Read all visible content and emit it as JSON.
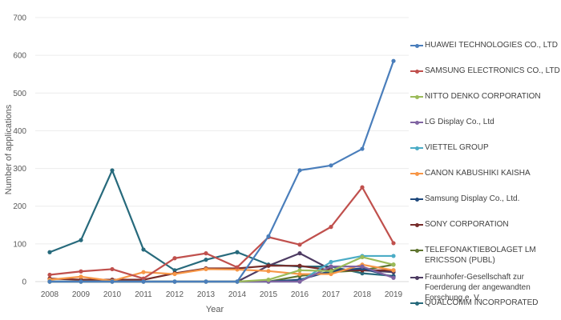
{
  "chart_data": {
    "type": "line",
    "title": "",
    "xlabel": "Year",
    "ylabel": "Number of applications",
    "ylim": [
      0,
      700
    ],
    "yticks": [
      0,
      100,
      200,
      300,
      400,
      500,
      600,
      700
    ],
    "grid": true,
    "legend_position": "right",
    "categories": [
      "2008",
      "2009",
      "2010",
      "2011",
      "2012",
      "2013",
      "2014",
      "2015",
      "2016",
      "2017",
      "2018",
      "2019"
    ],
    "series": [
      {
        "name": "HUAWEI TECHNOLOGIES CO., LTD",
        "color": "#4a7ebb",
        "values": [
          0,
          0,
          0,
          0,
          0,
          0,
          0,
          120,
          295,
          308,
          352,
          585
        ]
      },
      {
        "name": "SAMSUNG ELECTRONICS CO., LTD",
        "color": "#c0504d",
        "values": [
          18,
          27,
          33,
          8,
          62,
          75,
          38,
          118,
          98,
          145,
          250,
          102
        ]
      },
      {
        "name": "NITTO DENKO CORPORATION",
        "color": "#9bbb59",
        "values": [
          0,
          0,
          0,
          0,
          0,
          0,
          0,
          5,
          30,
          28,
          65,
          45
        ]
      },
      {
        "name": "LG Display Co., Ltd",
        "color": "#8064a2",
        "values": [
          0,
          0,
          0,
          0,
          0,
          0,
          0,
          0,
          0,
          40,
          40,
          10
        ]
      },
      {
        "name": "VIETTEL GROUP",
        "color": "#4bacc6",
        "values": [
          0,
          0,
          0,
          0,
          0,
          0,
          0,
          0,
          0,
          52,
          68,
          68
        ]
      },
      {
        "name": "CANON KABUSHIKI KAISHA",
        "color": "#f79646",
        "values": [
          5,
          13,
          2,
          25,
          20,
          33,
          32,
          28,
          20,
          20,
          45,
          30
        ]
      },
      {
        "name": "Samsung Display Co., Ltd.",
        "color": "#1f497d",
        "values": [
          0,
          0,
          0,
          0,
          0,
          0,
          0,
          0,
          5,
          28,
          35,
          12
        ]
      },
      {
        "name": "SONY CORPORATION",
        "color": "#772c2a",
        "values": [
          8,
          5,
          5,
          5,
          22,
          35,
          35,
          42,
          42,
          30,
          30,
          30
        ]
      },
      {
        "name": "TELEFONAKTIEBOLAGET LM ERICSSON (PUBL)",
        "color": "#5f7530",
        "values": [
          0,
          0,
          0,
          0,
          0,
          0,
          0,
          0,
          15,
          25,
          30,
          45
        ]
      },
      {
        "name": "Fraunhofer-Gesellschaft zur Foerderung der angewandten Forschung e. V.",
        "color": "#4d3b62",
        "values": [
          0,
          0,
          0,
          0,
          0,
          0,
          0,
          42,
          75,
          32,
          30,
          25
        ]
      },
      {
        "name": "QUALCOMM INCORPORATED",
        "color": "#276a7c",
        "values": [
          78,
          110,
          295,
          85,
          30,
          58,
          78,
          45,
          40,
          40,
          22,
          15
        ]
      }
    ]
  }
}
